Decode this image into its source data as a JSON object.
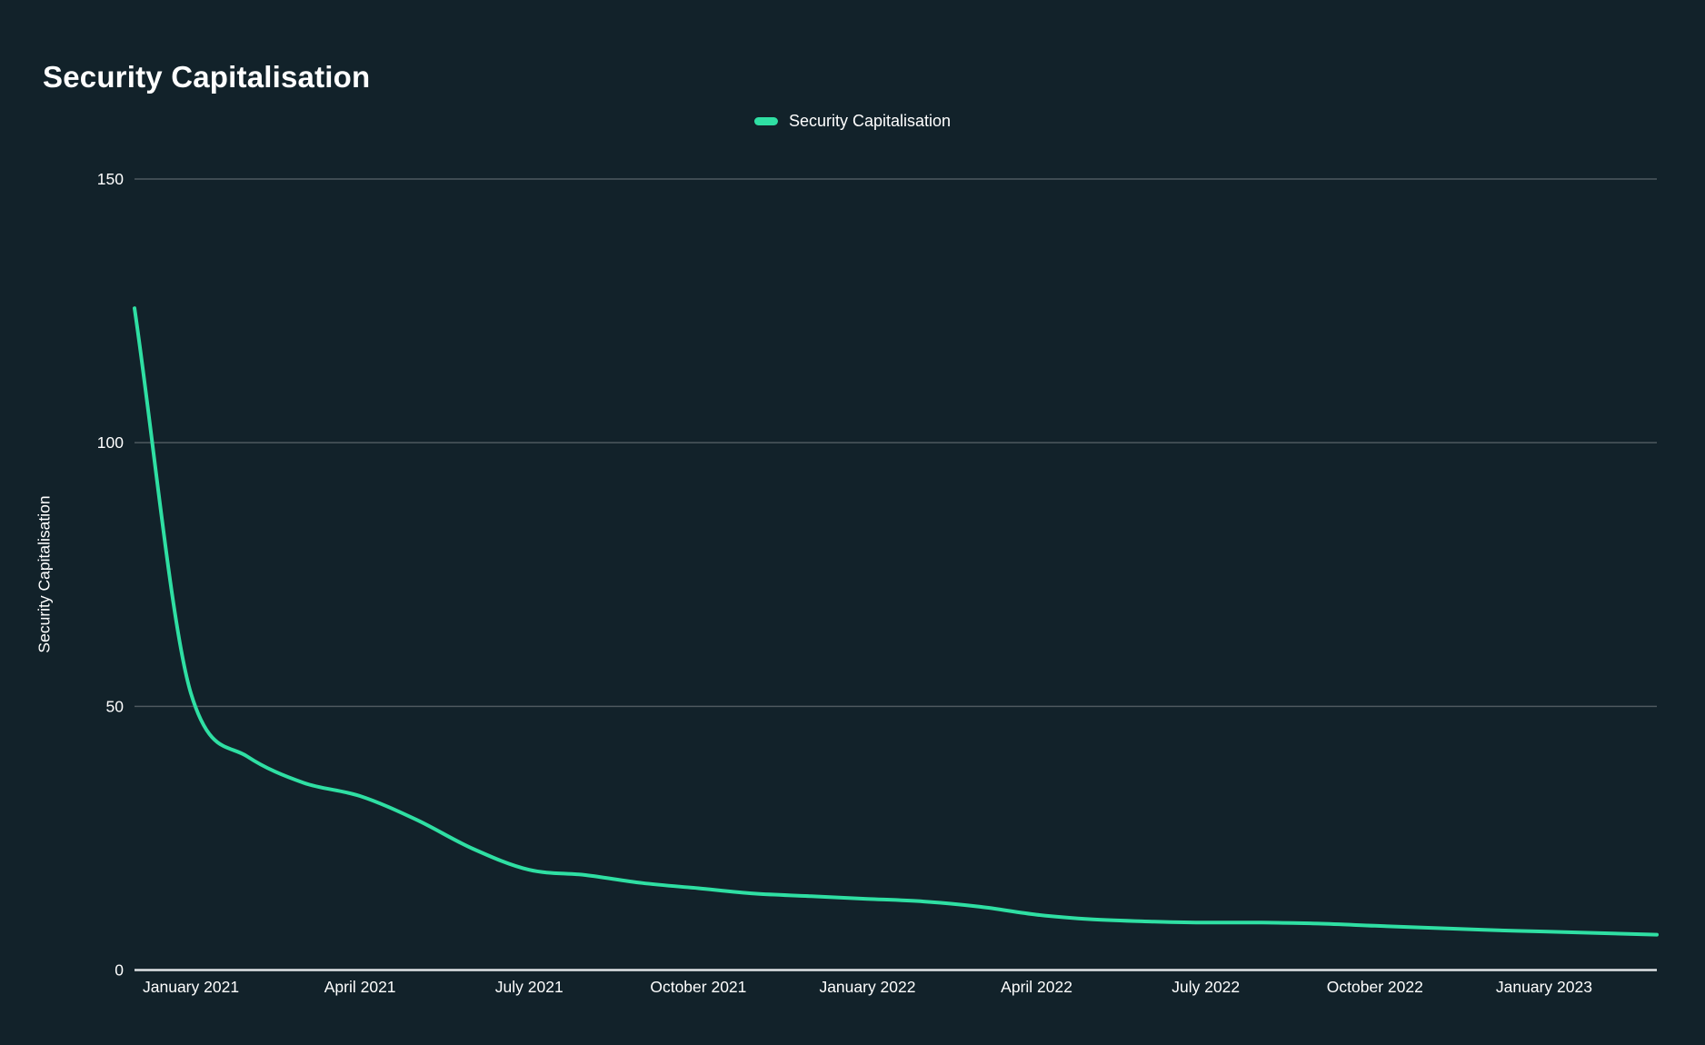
{
  "title": "Security Capitalisation",
  "legend": {
    "label": "Security Capitalisation"
  },
  "y_axis": {
    "title": "Security Capitalisation",
    "tick_labels": [
      "0",
      "50",
      "100",
      "150"
    ]
  },
  "x_axis": {
    "tick_labels": [
      "January 2021",
      "April 2021",
      "July 2021",
      "October 2021",
      "January 2022",
      "April 2022",
      "July 2022",
      "October 2022",
      "January 2023"
    ]
  },
  "colors": {
    "background": "#12222a",
    "series": "#2fdfa3",
    "gridline": "#4e595f",
    "axis_line": "#dfe3e6",
    "text": "#ffffff"
  },
  "chart_data": {
    "type": "line",
    "title": "Security Capitalisation",
    "x": [
      "Dec 2020",
      "Jan 2021",
      "Feb 2021",
      "Mar 2021",
      "Apr 2021",
      "May 2021",
      "Jun 2021",
      "Jul 2021",
      "Aug 2021",
      "Sep 2021",
      "Oct 2021",
      "Nov 2021",
      "Dec 2021",
      "Jan 2022",
      "Feb 2022",
      "Mar 2022",
      "Apr 2022",
      "May 2022",
      "Jun 2022",
      "Jul 2022",
      "Aug 2022",
      "Sep 2022",
      "Oct 2022",
      "Nov 2022",
      "Dec 2022",
      "Jan 2023",
      "Feb 2023",
      "Mar 2023"
    ],
    "series": [
      {
        "name": "Security Capitalisation",
        "color": "#2fdfa3",
        "values": [
          125.5,
          52.5,
          40.5,
          35.5,
          33,
          28.5,
          23,
          19,
          18,
          16.5,
          15.5,
          14.5,
          14,
          13.5,
          13,
          12,
          10.5,
          9.6,
          9.2,
          9,
          9,
          8.8,
          8.4,
          8,
          7.6,
          7.3,
          7,
          6.7
        ]
      }
    ],
    "ylabel": "Security Capitalisation",
    "ylim": [
      0,
      150
    ],
    "y_ticks": [
      0,
      50,
      100,
      150
    ],
    "x_tick_positions": [
      1,
      4,
      7,
      10,
      13,
      16,
      19,
      22,
      25
    ],
    "x_tick_labels": [
      "January 2021",
      "April 2021",
      "July 2021",
      "October 2021",
      "January 2022",
      "April 2022",
      "July 2022",
      "October 2022",
      "January 2023"
    ],
    "grid": "horizontal-only",
    "legend_position": "top-center",
    "line_smoothing": "monotone"
  }
}
